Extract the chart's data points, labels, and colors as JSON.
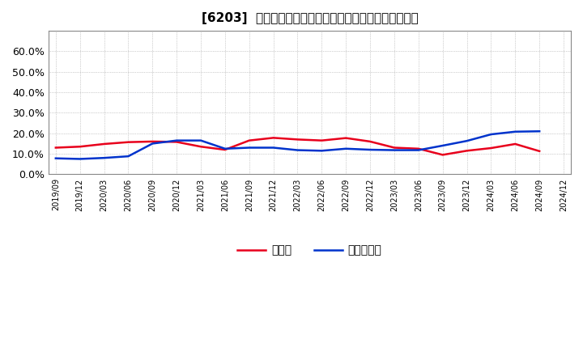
{
  "title": "[6203]  現頣金、有利子負債の総資産に対する比率の推移",
  "x_labels": [
    "2019/09",
    "2019/12",
    "2020/03",
    "2020/06",
    "2020/09",
    "2020/12",
    "2021/03",
    "2021/06",
    "2021/09",
    "2021/12",
    "2022/03",
    "2022/06",
    "2022/09",
    "2022/12",
    "2023/03",
    "2023/06",
    "2023/09",
    "2023/12",
    "2024/03",
    "2024/06",
    "2024/09",
    "2024/12"
  ],
  "cash": [
    0.13,
    0.135,
    0.148,
    0.157,
    0.16,
    0.158,
    0.135,
    0.12,
    0.165,
    0.178,
    0.17,
    0.165,
    0.177,
    0.16,
    0.13,
    0.125,
    0.095,
    0.115,
    0.128,
    0.148,
    0.113,
    null
  ],
  "debt": [
    0.078,
    0.075,
    0.08,
    0.088,
    0.15,
    0.165,
    0.165,
    0.125,
    0.13,
    0.13,
    0.118,
    0.115,
    0.125,
    0.12,
    0.118,
    0.118,
    0.14,
    0.163,
    0.195,
    0.208,
    0.21,
    null
  ],
  "cash_color": "#e8001c",
  "debt_color": "#0033cc",
  "legend_cash": "現頣金",
  "legend_debt": "有利子負債",
  "ylim": [
    0.0,
    0.7
  ],
  "yticks": [
    0.0,
    0.1,
    0.2,
    0.3,
    0.4,
    0.5,
    0.6
  ],
  "bg_color": "#ffffff",
  "plot_bg_color": "#ffffff",
  "grid_color": "#999999",
  "line_width": 1.8
}
